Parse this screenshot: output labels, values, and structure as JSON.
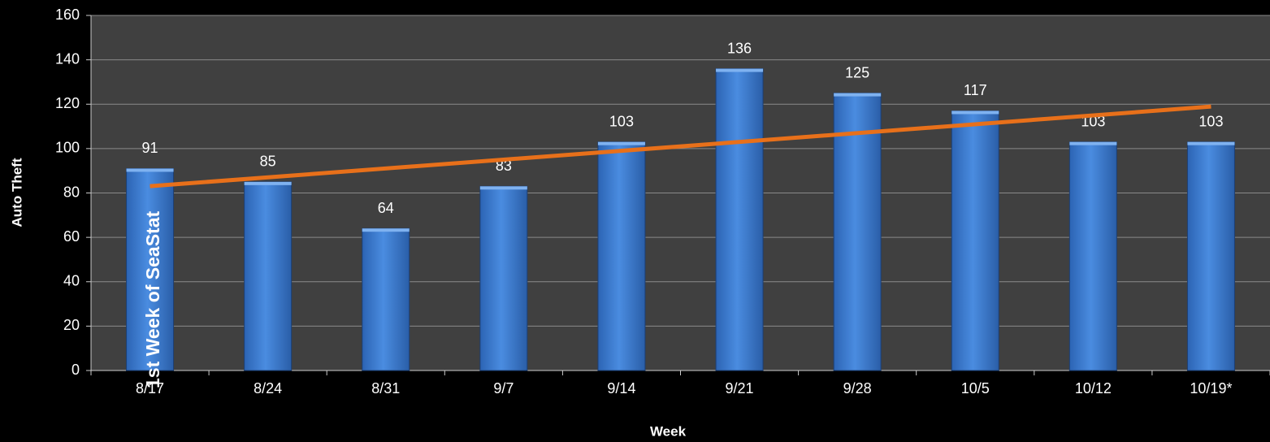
{
  "chart_data": {
    "type": "bar",
    "x_label": "Week",
    "y_label": "Auto Theft",
    "categories": [
      "8/17",
      "8/24",
      "8/31",
      "9/7",
      "9/14",
      "9/21",
      "9/28",
      "10/5",
      "10/12",
      "10/19*"
    ],
    "values": [
      91,
      85,
      64,
      83,
      103,
      136,
      125,
      117,
      103,
      103
    ],
    "color": "#3f7fd3",
    "trendline": true,
    "trendline_color": "#e8701a",
    "annotation": "1st Week of SeaStat",
    "ylim": [
      0,
      160
    ],
    "yticks": [
      0,
      20,
      40,
      60,
      80,
      100,
      120,
      140,
      160
    ],
    "grid": true
  }
}
